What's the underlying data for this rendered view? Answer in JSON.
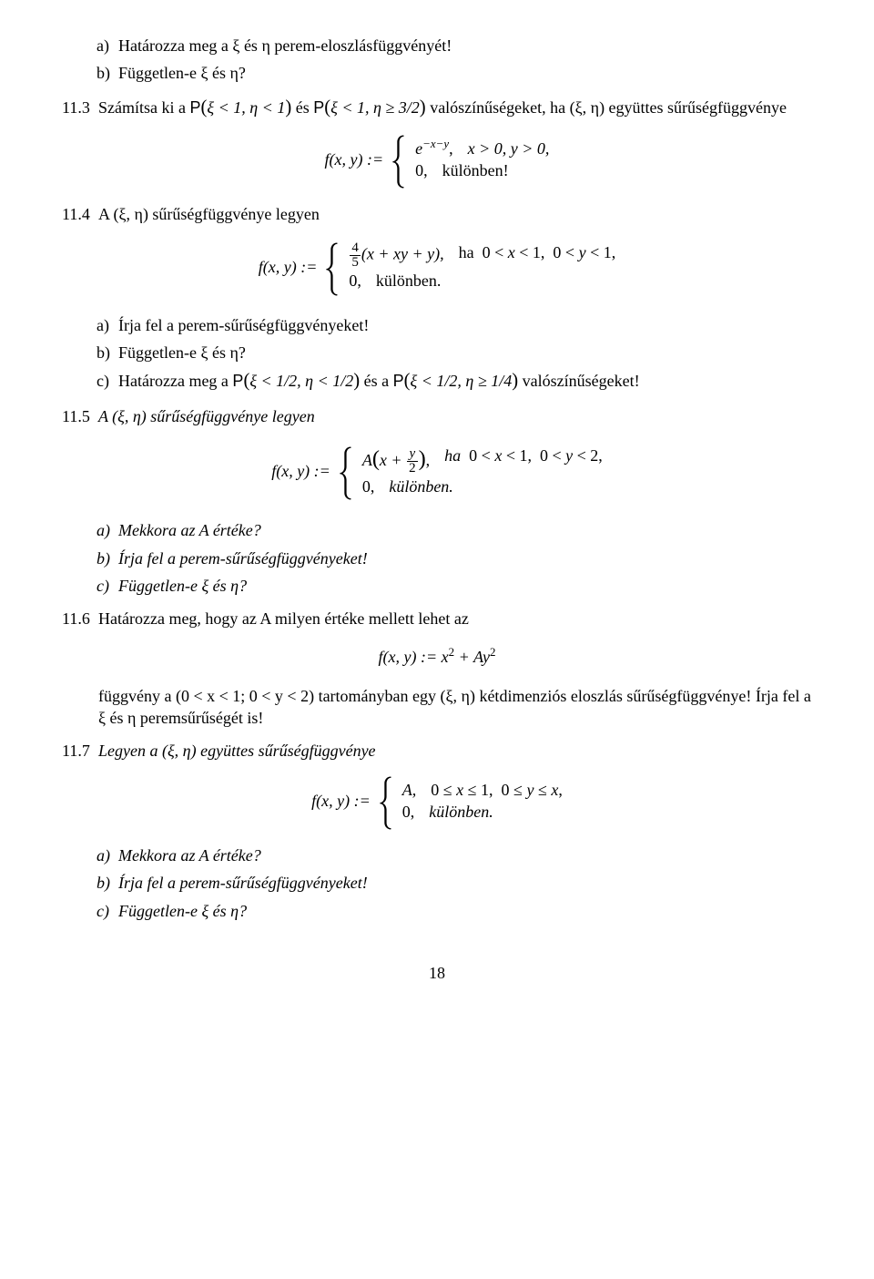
{
  "page_number": "18",
  "text_color": "#000000",
  "background_color": "#ffffff",
  "font_family": "Times New Roman, serif",
  "font_size_pt": 12,
  "p0": {
    "a": "Határozza meg a  ξ  és  η  perem-eloszlásfüggvényét!",
    "b": "Független-e  ξ  és  η?"
  },
  "p113": {
    "num": "11.3",
    "text_before": "Számítsa ki a  ",
    "prob1_lhs": "ξ < 1, η < 1",
    "mid1": "  és  ",
    "prob2_lhs": "ξ < 1, η ≥ 3/2",
    "text_after": "  valószínűségeket, ha  (ξ, η) együttes sűrűségfüggvénye",
    "eq": {
      "lhs": "f(x, y) := ",
      "case1_l": "e",
      "case1_exp": "−x−y",
      "case1_r": "x > 0,  y > 0,",
      "case2_l": "0,",
      "case2_r": "különben!"
    }
  },
  "p114": {
    "num": "11.4",
    "text": "A  (ξ, η)  sűrűségfüggvénye legyen",
    "eq": {
      "lhs": "f(x, y) := ",
      "frac_n": "4",
      "frac_d": "5",
      "case1_l": "(x + xy + y),",
      "case1_r": "ha  0 < x < 1,  0 < y < 1,",
      "case2_l": "0,",
      "case2_r": "különben."
    },
    "a": "Írja fel a perem-sűrűségfüggvényeket!",
    "b": "Független-e  ξ  és  η?",
    "c_before": "Határozza meg a  ",
    "c_p1": "ξ < 1/2, η < 1/2",
    "c_mid": "  és a  ",
    "c_p2": "ξ < 1/2, η ≥ 1/4",
    "c_after": "  valószínűségeket!"
  },
  "p115": {
    "num": "11.5",
    "text": "A  (ξ, η)  sűrűségfüggvénye legyen",
    "eq": {
      "lhs": "f(x, y) := ",
      "case1_A": "A",
      "case1_inner_x": "x + ",
      "case1_frac_n": "y",
      "case1_frac_d": "2",
      "case1_r": "ha  0 < x < 1,  0 < y < 2,",
      "case2_l": "0,",
      "case2_r": "különben."
    },
    "a": "Mekkora az  A  értéke?",
    "b": "Írja fel a perem-sűrűségfüggvényeket!",
    "c": "Független-e  ξ  és  η?"
  },
  "p116": {
    "num": "11.6",
    "text": "Határozza meg, hogy az  A  milyen értéke mellett lehet az",
    "eq": "f(x, y) := x² + Ay²",
    "eq_lhs": "f(x, y) := x",
    "eq_sup1": "2",
    "eq_mid": " + Ay",
    "eq_sup2": "2",
    "cont": "függvény a  (0 < x < 1;  0 < y < 2)  tartományban egy  (ξ, η)  kétdimenziós eloszlás sűrűségfüggvénye! Írja fel a  ξ  és  η  peremsűrűségét is!"
  },
  "p117": {
    "num": "11.7",
    "text": "Legyen a  (ξ, η)  együttes sűrűségfüggvénye",
    "eq": {
      "lhs": "f(x, y) := ",
      "case1_l": "A,",
      "case1_r": "0 ≤ x ≤ 1,  0 ≤ y ≤ x,",
      "case2_l": "0,",
      "case2_r": "különben."
    },
    "a": "Mekkora az  A  értéke?",
    "b": "Írja fel a perem-sűrűségfüggvényeket!",
    "c": "Független-e  ξ  és  η?"
  }
}
